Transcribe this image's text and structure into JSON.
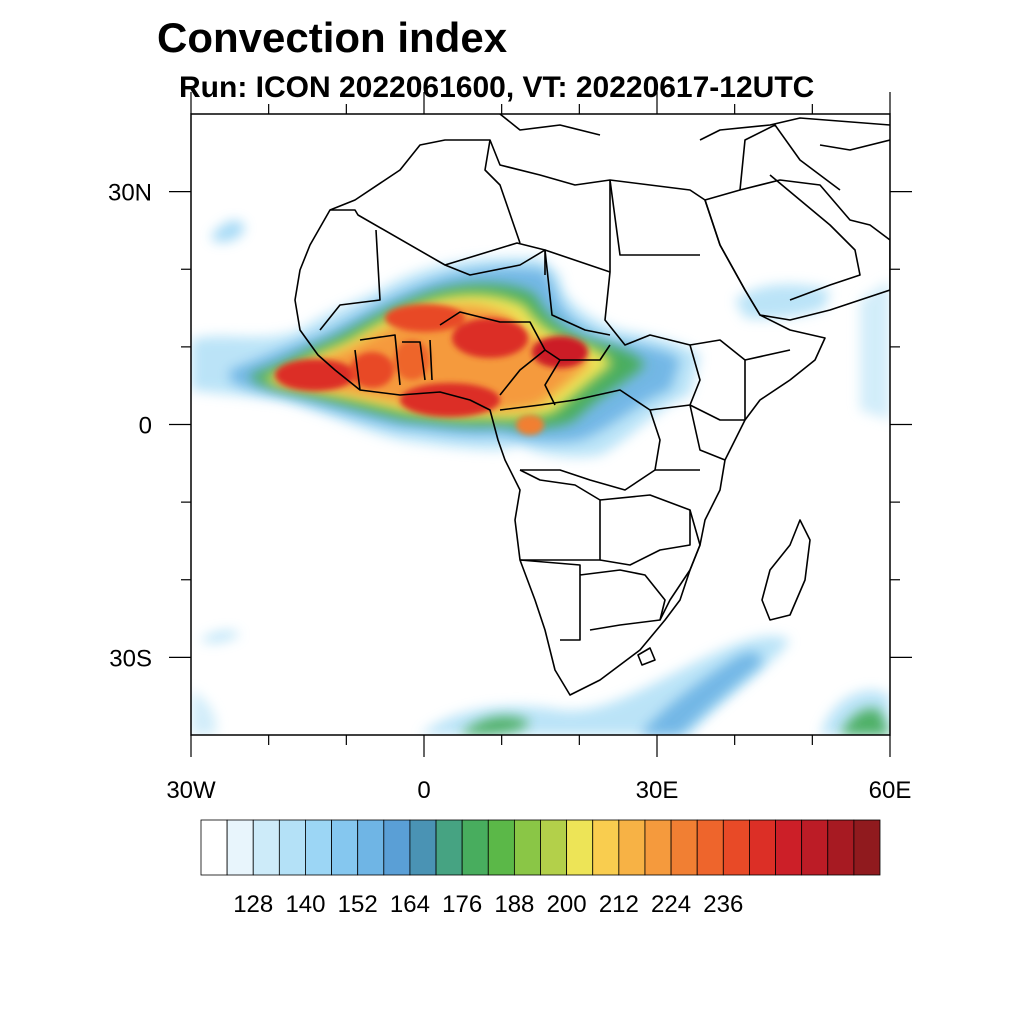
{
  "title": "Convection index",
  "subtitle": "Run: ICON 2022061600,  VT: 20220617-12UTC",
  "map": {
    "region": "Africa and Arabian Peninsula",
    "lon_range": [
      -30,
      60
    ],
    "lat_range": [
      -40,
      40
    ],
    "x_ticks": [
      {
        "lon": -30,
        "label": "30W"
      },
      {
        "lon": 0,
        "label": "0"
      },
      {
        "lon": 30,
        "label": "30E"
      },
      {
        "lon": 60,
        "label": "60E"
      }
    ],
    "y_ticks": [
      {
        "lat": 30,
        "label": "30N"
      },
      {
        "lat": 0,
        "label": "0"
      },
      {
        "lat": -30,
        "label": "30S"
      }
    ],
    "minor_x_ticks": [
      -20,
      -10,
      10,
      20,
      40,
      50
    ],
    "minor_y_ticks": [
      20,
      10,
      -10,
      -20
    ]
  },
  "colorbar": {
    "labels": [
      "128",
      "140",
      "152",
      "164",
      "176",
      "188",
      "200",
      "212",
      "224",
      "236"
    ],
    "colors": [
      "#ffffff",
      "#e8f5fc",
      "#cdebf9",
      "#b4e1f7",
      "#9cd6f5",
      "#85c7ef",
      "#6fb5e5",
      "#5a9fd6",
      "#4a93b4",
      "#46a382",
      "#48ad5e",
      "#5bb848",
      "#8ac646",
      "#b3d04a",
      "#ede457",
      "#f9cd4f",
      "#f7b245",
      "#f59a3d",
      "#f17f33",
      "#ee652c",
      "#e84a27",
      "#dc2f26",
      "#cc1f28",
      "#bc1c26",
      "#a71a22",
      "#901a1e"
    ]
  },
  "style": {
    "frame_color": "#000000",
    "border_color": "#000000"
  }
}
